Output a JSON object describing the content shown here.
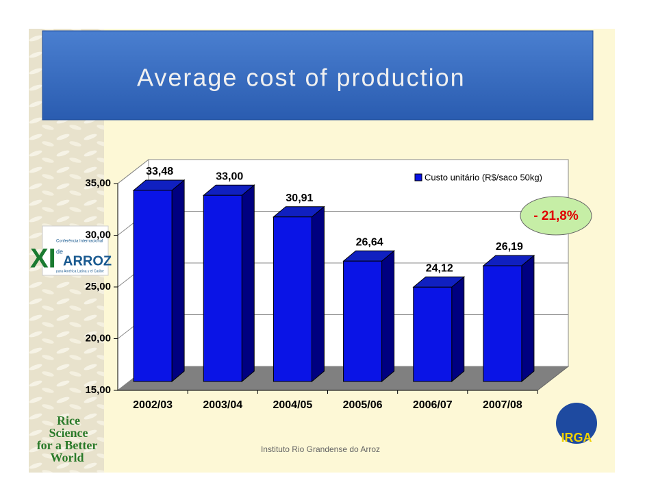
{
  "chart_data": {
    "type": "bar3d",
    "title": "Average cost of production",
    "categories": [
      "2002/03",
      "2003/04",
      "2004/05",
      "2005/06",
      "2006/07",
      "2007/08"
    ],
    "series": [
      {
        "name": "Custo unitário (R$/saco 50kg)",
        "color": "#0a14e6",
        "values": [
          33.48,
          33.0,
          30.91,
          26.64,
          24.12,
          26.19
        ],
        "value_labels": [
          "33,48",
          "33,00",
          "30,91",
          "26,64",
          "24,12",
          "26,19"
        ]
      }
    ],
    "ylim": [
      15,
      35
    ],
    "yticks": [
      {
        "value": 15,
        "label": "15,00"
      },
      {
        "value": 20,
        "label": "20,00"
      },
      {
        "value": 25,
        "label": "25,00"
      },
      {
        "value": 30,
        "label": "30,00"
      },
      {
        "value": 35,
        "label": "35,00"
      }
    ],
    "grid": true,
    "legend": "top-right",
    "annotation": "- 21,8%"
  },
  "footer": "Instituto Rio Grandense do Arroz",
  "logos": {
    "conference": [
      "XI",
      "Conferência Internacional",
      "de",
      "ARROZ",
      "para América Latina y el Caribe"
    ],
    "rice": [
      "Rice",
      "Science",
      "for a Better",
      "World"
    ],
    "irga": "IRGA"
  }
}
